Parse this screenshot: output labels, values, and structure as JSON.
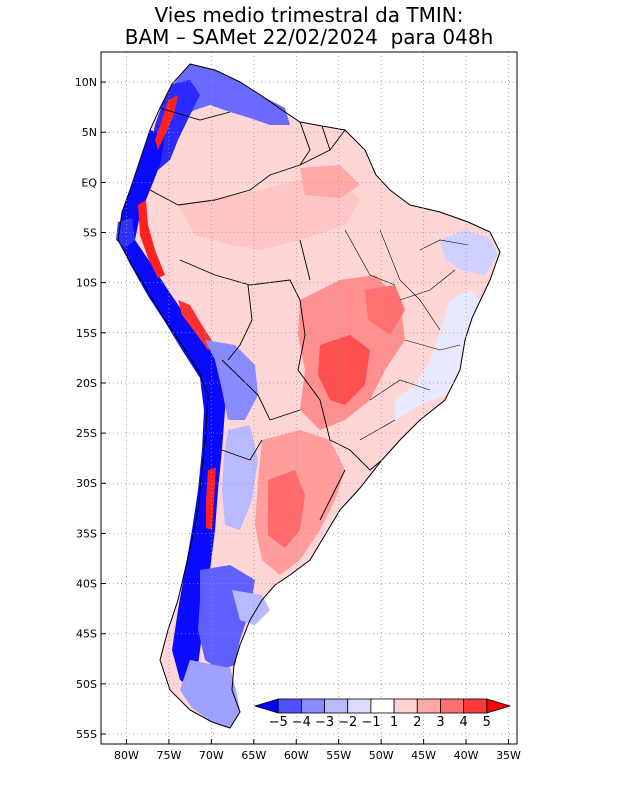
{
  "title": {
    "line1": "Vies medio trimestral da TMIN:",
    "line2": "BAM – SAMet 22/02/2024  para 048h"
  },
  "map": {
    "lat_ticks": [
      "10N",
      "5N",
      "EQ",
      "5S",
      "10S",
      "15S",
      "20S",
      "25S",
      "30S",
      "35S",
      "40S",
      "45S",
      "50S",
      "55S"
    ],
    "lat_values": [
      10,
      5,
      0,
      -5,
      -10,
      -15,
      -20,
      -25,
      -30,
      -35,
      -40,
      -45,
      -50,
      -55
    ],
    "lon_ticks": [
      "80W",
      "75W",
      "70W",
      "65W",
      "60W",
      "55W",
      "50W",
      "45W",
      "40W",
      "35W"
    ],
    "lon_values": [
      -80,
      -75,
      -70,
      -65,
      -60,
      -55,
      -50,
      -45,
      -40,
      -35
    ],
    "lat_range": [
      -56,
      13
    ],
    "lon_range": [
      -83,
      -34
    ],
    "grid": "dotted",
    "land_outline_color": "#000000"
  },
  "colorbar": {
    "labels": [
      "−5",
      "−4",
      "−3",
      "−2",
      "−1",
      "1",
      "2",
      "3",
      "4",
      "5"
    ],
    "colors": [
      "#0000ff",
      "#5050ff",
      "#8a8aff",
      "#b9b9ff",
      "#dcdcff",
      "#ffffff",
      "#ffd2d2",
      "#ffa8a8",
      "#ff7070",
      "#ff3a3a",
      "#ff0000"
    ],
    "placement": "bottom-right"
  }
}
